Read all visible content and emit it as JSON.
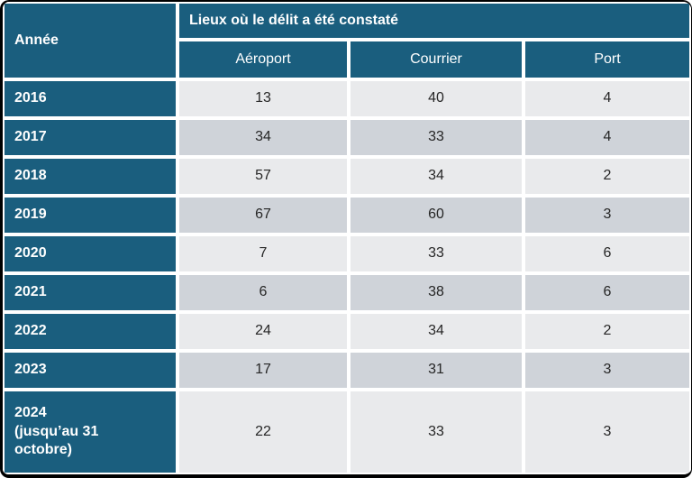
{
  "chart_data": {
    "type": "table",
    "title": "Lieux où le délit a été constaté",
    "row_header_label": "Année",
    "categories": [
      "2016",
      "2017",
      "2018",
      "2019",
      "2020",
      "2021",
      "2022",
      "2023",
      "2024 (jusqu’au 31 octobre)"
    ],
    "series": [
      {
        "name": "Aéroport",
        "values": [
          13,
          34,
          57,
          67,
          7,
          6,
          24,
          17,
          22
        ]
      },
      {
        "name": "Courrier",
        "values": [
          40,
          33,
          34,
          60,
          33,
          38,
          34,
          31,
          33
        ]
      },
      {
        "name": "Port",
        "values": [
          4,
          4,
          2,
          3,
          6,
          6,
          2,
          3,
          3
        ]
      }
    ]
  },
  "table": {
    "year_header": "Année",
    "group_header": "Lieux où le délit a été constaté",
    "columns": [
      "Aéroport",
      "Courrier",
      "Port"
    ],
    "rows": [
      {
        "year": "2016",
        "values": [
          "13",
          "40",
          "4"
        ]
      },
      {
        "year": "2017",
        "values": [
          "34",
          "33",
          "4"
        ]
      },
      {
        "year": "2018",
        "values": [
          "57",
          "34",
          "2"
        ]
      },
      {
        "year": "2019",
        "values": [
          "67",
          "60",
          "3"
        ]
      },
      {
        "year": "2020",
        "values": [
          "7",
          "33",
          "6"
        ]
      },
      {
        "year": "2021",
        "values": [
          "6",
          "38",
          "6"
        ]
      },
      {
        "year": "2022",
        "values": [
          "24",
          "34",
          "2"
        ]
      },
      {
        "year": "2023",
        "values": [
          "17",
          "31",
          "3"
        ]
      },
      {
        "year": "2024",
        "year_note": "(jusqu’au 31 octobre)",
        "values": [
          "22",
          "33",
          "3"
        ]
      }
    ],
    "colors": {
      "header_teal": "#1A5E7E",
      "band_light": "#E9EAEC",
      "band_dark": "#CFD3D9",
      "separator": "#FFFFFF",
      "value_text": "#262626",
      "frame_border": "#000000"
    }
  }
}
